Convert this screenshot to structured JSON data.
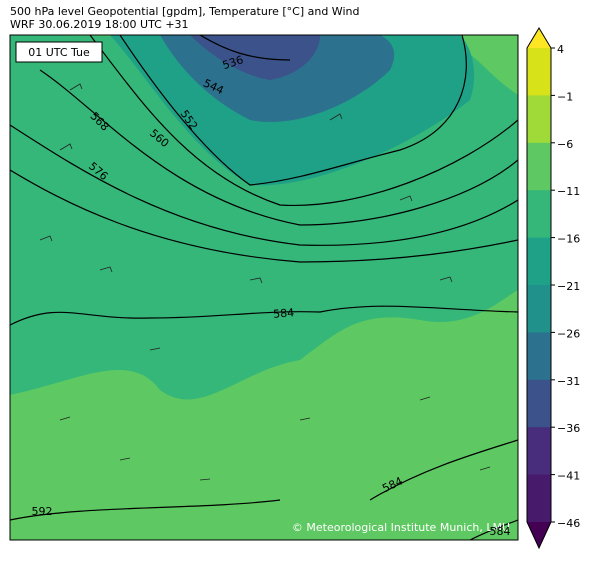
{
  "header": {
    "line1": "500 hPa level Geopotential [gpdm], Temperature [°C] and Wind",
    "line2": "WRF 30.06.2019 18:00 UTC +31"
  },
  "map": {
    "time_label": "01 UTC Tue",
    "copyright": "© Meteorological Institute Munich, LMU",
    "contour_labels": [
      536,
      544,
      552,
      560,
      568,
      576,
      584,
      584,
      592,
      584
    ]
  },
  "colorbar": {
    "ticks": [
      "4",
      "−1",
      "−6",
      "−11",
      "−16",
      "−21",
      "−26",
      "−31",
      "−36",
      "−41",
      "−46"
    ],
    "colors": [
      "#fde725",
      "#d8e219",
      "#a0da39",
      "#5ec962",
      "#35b779",
      "#1fa187",
      "#21918c",
      "#2c728e",
      "#3b528b",
      "#472d7b",
      "#481a6c",
      "#440154"
    ]
  }
}
